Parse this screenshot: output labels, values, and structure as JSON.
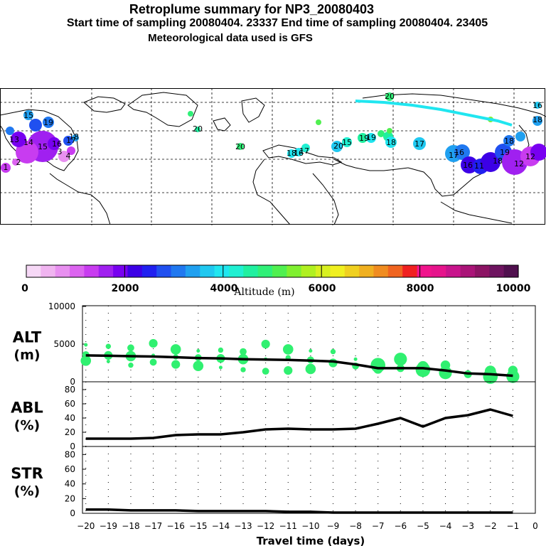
{
  "header": {
    "title": "Retroplume summary for NP3_20080403",
    "subtitle": "Start time of sampling 20080404. 23337     End time of sampling 20080404. 23405",
    "met_line": "Meteorological data used is GFS"
  },
  "colorbar": {
    "ticks": [
      "0",
      "2000",
      "4000",
      "6000",
      "8000",
      "10000"
    ],
    "label": "Altitude (m)",
    "colors": [
      "#f6d8f6",
      "#f0b4f0",
      "#e890f0",
      "#dc64f0",
      "#c83cf0",
      "#a020f0",
      "#7800f0",
      "#3c00e6",
      "#2020f0",
      "#2050f0",
      "#2078f0",
      "#20a0f0",
      "#20c8f0",
      "#20e6f0",
      "#20f0d2",
      "#20f0a0",
      "#30f078",
      "#50f050",
      "#80f030",
      "#b0f020",
      "#d8f020",
      "#f0f020",
      "#f0d020",
      "#f0b020",
      "#f08c20",
      "#f06420",
      "#f02020",
      "#f0148c",
      "#e6148c",
      "#c8148c",
      "#aa1478",
      "#8c1464",
      "#6e1460",
      "#50104e"
    ]
  },
  "map_labels": [
    "20",
    "15",
    "16",
    "17",
    "19",
    "18",
    "20",
    "19",
    "17",
    "18",
    "20",
    "15",
    "19",
    "17",
    "18",
    "16",
    "17",
    "18",
    "19",
    "12",
    "11",
    "14",
    "15",
    "16",
    "13",
    "18",
    "20",
    "18",
    "16",
    "1",
    "4",
    "3",
    "2",
    "12",
    "16"
  ],
  "chart_data": [
    {
      "type": "line",
      "name": "ALT",
      "ylabel_top": "ALT",
      "ylabel_bottom": "(m)",
      "ylim": [
        0,
        10000
      ],
      "yticks": [
        "0",
        "5000",
        "10000"
      ],
      "x": [
        -20,
        -19,
        -18,
        -17,
        -16,
        -15,
        -14,
        -13,
        -12,
        -11,
        -10,
        -9,
        -8,
        -7,
        -6,
        -5,
        -4,
        -3,
        -2,
        -1
      ],
      "series": [
        {
          "name": "median altitude",
          "values": [
            3500,
            3450,
            3400,
            3350,
            3250,
            3150,
            3100,
            3000,
            2950,
            2900,
            2800,
            2700,
            2300,
            1800,
            1800,
            1800,
            1500,
            1100,
            1000,
            800
          ]
        }
      ],
      "points": [
        [
          -20,
          4900
        ],
        [
          -20,
          3600
        ],
        [
          -20,
          2800
        ],
        [
          -19,
          4700
        ],
        [
          -19,
          3500
        ],
        [
          -19,
          2700
        ],
        [
          -18,
          4500
        ],
        [
          -18,
          3400
        ],
        [
          -18,
          2200
        ],
        [
          -17,
          5100
        ],
        [
          -17,
          3500
        ],
        [
          -17,
          2600
        ],
        [
          -16,
          4300
        ],
        [
          -16,
          3300
        ],
        [
          -16,
          2300
        ],
        [
          -15,
          4100
        ],
        [
          -15,
          3200
        ],
        [
          -15,
          2100
        ],
        [
          -14,
          4200
        ],
        [
          -14,
          3100
        ],
        [
          -14,
          1900
        ],
        [
          -13,
          4000
        ],
        [
          -13,
          3000
        ],
        [
          -13,
          1600
        ],
        [
          -12,
          5000
        ],
        [
          -12,
          3000
        ],
        [
          -12,
          1400
        ],
        [
          -11,
          4300
        ],
        [
          -11,
          3200
        ],
        [
          -11,
          1500
        ],
        [
          -10,
          4100
        ],
        [
          -10,
          2900
        ],
        [
          -10,
          1700
        ],
        [
          -9,
          4000
        ],
        [
          -9,
          2500
        ],
        [
          -8,
          3000
        ],
        [
          -8,
          2100
        ],
        [
          -7,
          2200
        ],
        [
          -7,
          1700
        ],
        [
          -6,
          3000
        ],
        [
          -6,
          1800
        ],
        [
          -5,
          2000
        ],
        [
          -5,
          1600
        ],
        [
          -4,
          2200
        ],
        [
          -4,
          1200
        ],
        [
          -3,
          1000
        ],
        [
          -2,
          1400
        ],
        [
          -2,
          700
        ],
        [
          -1,
          1500
        ],
        [
          -1,
          700
        ]
      ]
    },
    {
      "type": "line",
      "name": "ABL",
      "ylabel_top": "ABL",
      "ylabel_bottom": "(%)",
      "ylim": [
        0,
        90
      ],
      "yticks": [
        "0",
        "20",
        "40",
        "60",
        "80"
      ],
      "x": [
        -20,
        -19,
        -18,
        -17,
        -16,
        -15,
        -14,
        -13,
        -12,
        -11,
        -10,
        -9,
        -8,
        -7,
        -6,
        -5,
        -4,
        -3,
        -2,
        -1
      ],
      "series": [
        {
          "name": "ABL fraction",
          "values": [
            11,
            11,
            11,
            12,
            16,
            17,
            17,
            20,
            24,
            25,
            24,
            24,
            25,
            32,
            40,
            28,
            40,
            44,
            52,
            43
          ]
        }
      ]
    },
    {
      "type": "line",
      "name": "STR",
      "ylabel_top": "STR",
      "ylabel_bottom": "(%)",
      "ylim": [
        0,
        90
      ],
      "yticks": [
        "0",
        "20",
        "40",
        "60",
        "80"
      ],
      "x": [
        -20,
        -19,
        -18,
        -17,
        -16,
        -15,
        -14,
        -13,
        -12,
        -11,
        -10,
        -9,
        -8,
        -7,
        -6,
        -5,
        -4,
        -3,
        -2,
        -1
      ],
      "series": [
        {
          "name": "stratospheric fraction",
          "values": [
            5,
            5,
            4,
            4,
            4,
            3,
            3,
            3,
            3,
            2,
            2,
            1,
            1,
            1,
            1,
            1,
            1,
            1,
            1,
            1
          ]
        }
      ]
    }
  ],
  "xaxis": {
    "ticks": [
      "−20",
      "−19",
      "−18",
      "−17",
      "−16",
      "−15",
      "−14",
      "−13",
      "−12",
      "−11",
      "−10",
      "−9",
      "−8",
      "−7",
      "−6",
      "−5",
      "−4",
      "−3",
      "−2",
      "−1",
      "0"
    ],
    "label": "Travel time (days)"
  }
}
